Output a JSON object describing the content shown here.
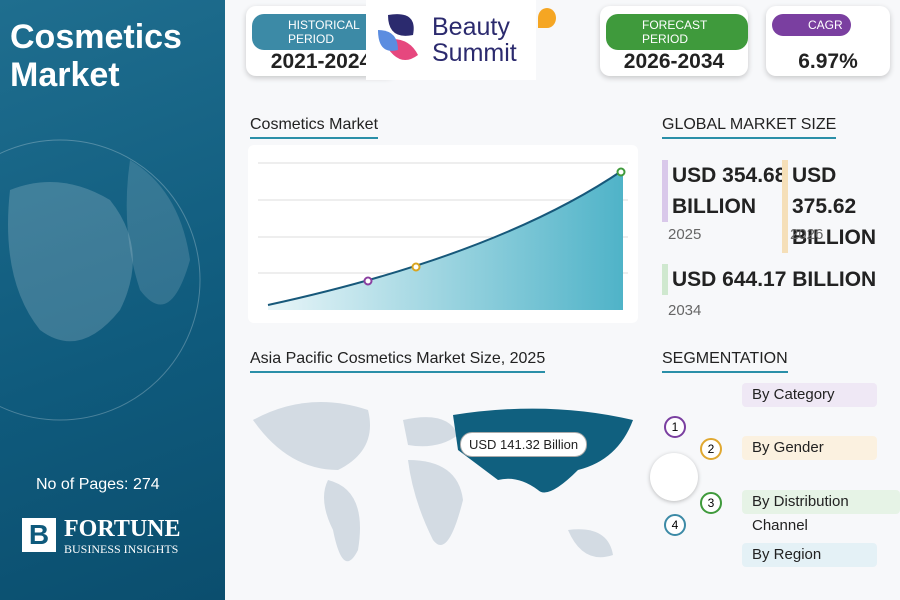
{
  "header": {
    "title": "Cosmetics Market"
  },
  "stats": [
    {
      "label": "HISTORICAL PERIOD",
      "value": "2021-2024"
    },
    {
      "label": "FORECAST PERIOD",
      "value": "2026-2034"
    },
    {
      "label": "CAGR",
      "value": "6.97%"
    }
  ],
  "logo": {
    "line1": "Beauty",
    "line2": "Summit"
  },
  "chart": {
    "title": "Cosmetics Market"
  },
  "global_market_size": {
    "title": "GLOBAL MARKET SIZE",
    "items": [
      {
        "value": "USD 354.68 BILLION",
        "year": "2025"
      },
      {
        "value": "USD 375.62 BILLION",
        "year": "2026"
      },
      {
        "value": "USD 644.17 BILLION",
        "year": "2034"
      }
    ]
  },
  "map": {
    "title": "Asia Pacific Cosmetics Market Size, 2025",
    "label": "USD 141.32 Billion"
  },
  "segmentation": {
    "title": "SEGMENTATION",
    "items": [
      {
        "number": "1",
        "label": "By Category"
      },
      {
        "number": "2",
        "label": "By Gender"
      },
      {
        "number": "3",
        "label": "By Distribution Channel"
      },
      {
        "number": "4",
        "label": "By Region"
      }
    ]
  },
  "footer": {
    "pages": "No of Pages: 274",
    "brand": "FORTUNE",
    "brand_sub": "BUSINESS INSIGHTS"
  }
}
